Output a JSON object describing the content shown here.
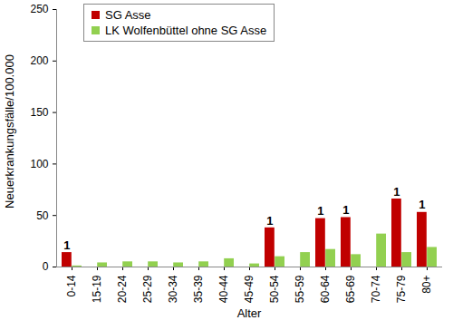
{
  "chart_data": {
    "type": "bar",
    "x_label": "Alter",
    "y_label": "Neuerkrankungsfälle/100.000",
    "categories": [
      "0-14",
      "15-19",
      "20-24",
      "25-29",
      "30-34",
      "35-39",
      "40-44",
      "45-49",
      "50-54",
      "55-59",
      "60-64",
      "65-69",
      "70-74",
      "75-79",
      "80+"
    ],
    "series": [
      {
        "name": "SG Asse",
        "color": "#c00000",
        "values": [
          14,
          0,
          0,
          0,
          0,
          0,
          0,
          0,
          38,
          0,
          47,
          48,
          0,
          66,
          53
        ],
        "cases": [
          1,
          null,
          null,
          null,
          null,
          null,
          null,
          null,
          1,
          null,
          1,
          1,
          null,
          1,
          1
        ]
      },
      {
        "name": "LK Wolfenbüttel ohne SG Asse",
        "color": "#92d050",
        "values": [
          1,
          4,
          5,
          5,
          4,
          5,
          8,
          3,
          10,
          14,
          17,
          12,
          32,
          14,
          19
        ]
      }
    ],
    "ylim": [
      0,
      250
    ],
    "yticks": [
      0,
      50,
      100,
      150,
      200,
      250
    ],
    "grid": false,
    "legend": "top-left"
  }
}
